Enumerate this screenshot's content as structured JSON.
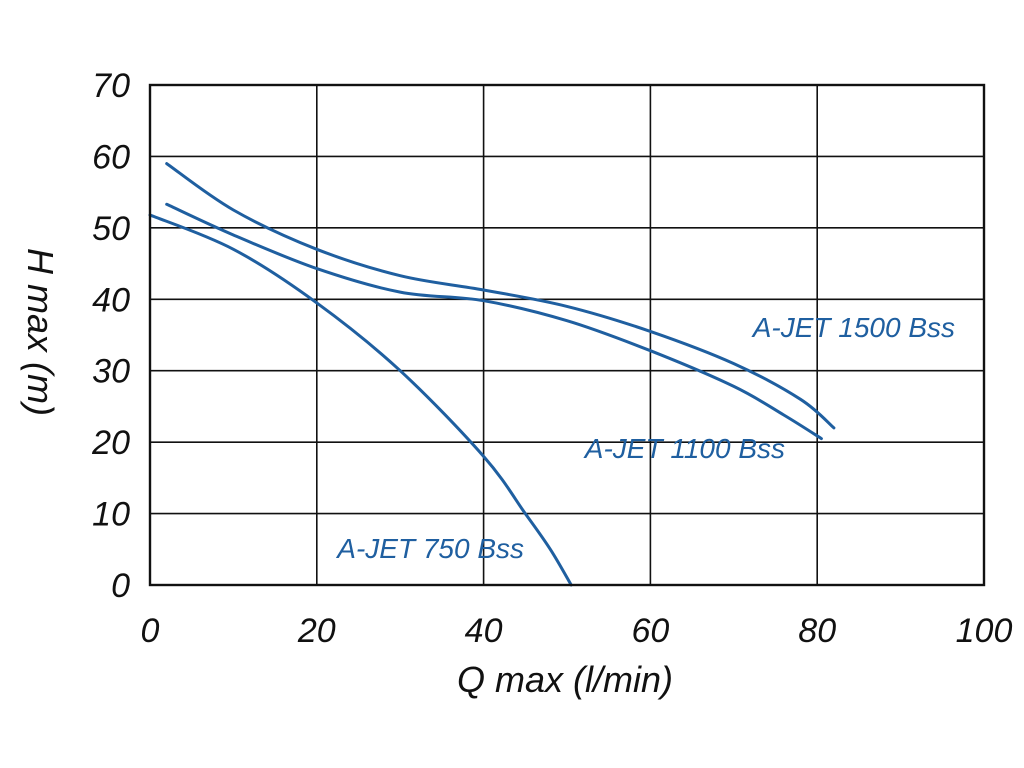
{
  "chart_data": {
    "type": "line",
    "xlabel": "Q max (l/min)",
    "ylabel": "H max (m)",
    "xlim": [
      0,
      100
    ],
    "ylim": [
      0,
      70
    ],
    "x_ticks": [
      0,
      20,
      40,
      60,
      80,
      100
    ],
    "y_ticks": [
      0,
      10,
      20,
      30,
      40,
      50,
      60,
      70
    ],
    "grid": true,
    "line_color": "#1f5fa0",
    "series": [
      {
        "name": "A-JET 1500 Bss",
        "x": [
          2,
          10,
          20,
          30,
          40,
          50,
          60,
          70,
          78,
          82
        ],
        "y": [
          59,
          52.5,
          47,
          43.3,
          41.3,
          39,
          35.5,
          31,
          26,
          22
        ]
      },
      {
        "name": "A-JET 1100 Bss",
        "x": [
          2,
          10,
          20,
          30,
          40,
          50,
          60,
          70,
          76,
          80.5
        ],
        "y": [
          53.3,
          49,
          44.3,
          41,
          39.8,
          37,
          32.8,
          27.8,
          23.8,
          20.5
        ]
      },
      {
        "name": "A-JET 750 Bss",
        "x": [
          0,
          10,
          20,
          30,
          40,
          45,
          48,
          50.5
        ],
        "y": [
          51.8,
          47,
          39.5,
          30,
          18,
          10,
          5,
          0
        ]
      }
    ]
  }
}
